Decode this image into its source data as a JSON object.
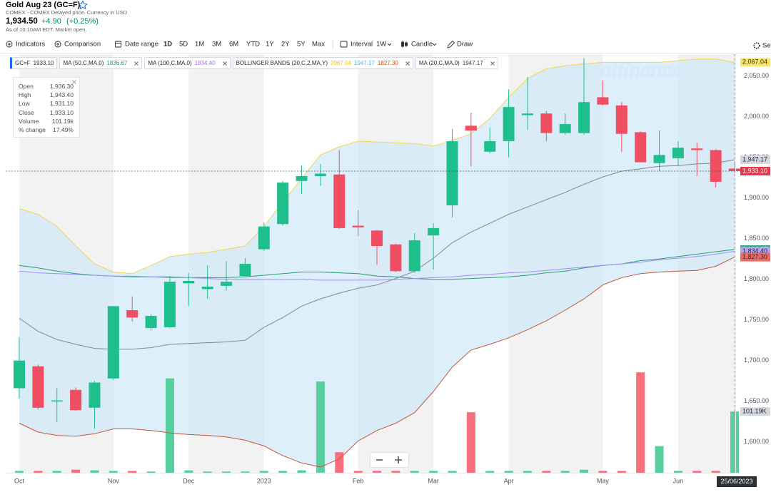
{
  "header": {
    "title": "Gold Aug 23 (GC=F)",
    "source": "COMEX - COMEX Delayed price. Currency in USD",
    "price": "1,934.50",
    "change": "+4.90",
    "change_pct": "(+0.25%)",
    "as_of": "As of 10:10AM EDT. Market open."
  },
  "toolbar": {
    "indicators": "Indicators",
    "comparison": "Comparison",
    "date_range": "Date range",
    "ranges": [
      "1D",
      "5D",
      "1M",
      "3M",
      "6M",
      "YTD",
      "1Y",
      "2Y",
      "5Y",
      "Max"
    ],
    "active_range": 0,
    "interval": "Interval",
    "interval_value": "1W",
    "chart_type": "Candle",
    "draw": "Draw",
    "settings": "Set"
  },
  "tooltip": {
    "rows": [
      [
        "Open",
        "1,936.30"
      ],
      [
        "High",
        "1,943.40"
      ],
      [
        "Low",
        "1,931.10"
      ],
      [
        "Close",
        "1,933.10"
      ],
      [
        "Volume",
        "101.19k"
      ],
      [
        "% change",
        "17.49%"
      ]
    ]
  },
  "chart_data": {
    "type": "candlestick",
    "watermark": "yahoo!finance",
    "categories": [
      "Oct",
      null,
      null,
      null,
      null,
      "Nov",
      null,
      null,
      null,
      "Dec",
      null,
      null,
      null,
      "2023",
      null,
      null,
      null,
      null,
      "Feb",
      null,
      null,
      null,
      "Mar",
      null,
      null,
      null,
      "Apr",
      null,
      null,
      null,
      null,
      "May",
      null,
      null,
      null,
      "Jun",
      null,
      null,
      null
    ],
    "crosshair_x_label": "25/06/2023",
    "ylim": [
      1562,
      2077
    ],
    "yticks": [
      {
        "value": 1600,
        "label": "1,600.00"
      },
      {
        "value": 1650,
        "label": "1,650.00"
      },
      {
        "value": 1700,
        "label": "1,700.00"
      },
      {
        "value": 1750,
        "label": "1,750.00"
      },
      {
        "value": 1800,
        "label": "1,800.00"
      },
      {
        "value": 1850,
        "label": "1,850.00"
      },
      {
        "value": 1900,
        "label": "1,900.00"
      },
      {
        "value": 1950,
        "label": "1,950.00"
      },
      {
        "value": 2000,
        "label": "2,000.00"
      },
      {
        "value": 2050,
        "label": "2,050.00"
      }
    ],
    "grid": false,
    "up_color": "#1fbf8b",
    "down_color": "#ef4f60",
    "ohlc": {
      "open": [
        1666,
        1693,
        1650,
        1664,
        1642,
        1678,
        1762,
        1740,
        1741,
        1795,
        1788,
        1792,
        1804,
        1837,
        1868,
        1921,
        1927,
        1929,
        1866,
        1860,
        1843,
        1810,
        1854,
        1891,
        1989,
        1957,
        1970,
        2002,
        2004,
        1980,
        1980,
        2024,
        2014,
        1981,
        1943,
        1949,
        1961,
        1959,
        1936.3
      ],
      "high": [
        1729,
        1695,
        1666,
        1667,
        1675,
        1767,
        1779,
        1757,
        1804,
        1808,
        1817,
        1822,
        1826,
        1870,
        1921,
        1940,
        1942,
        1959,
        1885,
        1861,
        1844,
        1857,
        1869,
        1985,
        2005,
        1987,
        2034,
        2049,
        2007,
        2004,
        2072,
        2045,
        2018,
        1982,
        1983,
        1970,
        1968,
        1960,
        1943.4
      ],
      "low": [
        1653,
        1640,
        1624,
        1638,
        1616,
        1676,
        1748,
        1737,
        1740,
        1767,
        1776,
        1786,
        1803,
        1835,
        1866,
        1905,
        1915,
        1862,
        1853,
        1818,
        1809,
        1808,
        1812,
        1876,
        1939,
        1955,
        1950,
        1984,
        1970,
        1978,
        1978,
        2014,
        1957,
        1944,
        1933,
        1939,
        1927,
        1913,
        1931.1
      ],
      "close": [
        1700,
        1642,
        1651,
        1639,
        1673,
        1767,
        1753,
        1755,
        1797,
        1798,
        1791,
        1797,
        1819,
        1865,
        1919,
        1927,
        1930,
        1863,
        1864,
        1841,
        1810,
        1848,
        1863,
        1970,
        1983,
        1970,
        2012,
        2004,
        1980,
        1991,
        2018,
        2015,
        1979,
        1944,
        1953,
        1962,
        1959,
        1920,
        1933.1
      ]
    },
    "last_close_label": "1,933.10",
    "band_fill": "#cfe8fa",
    "series": [
      {
        "color": "#2a9d6f",
        "last_label": "1,836.67",
        "label_bg": "#2fb07c",
        "label_fg": "#ffffff",
        "values": [
          1817,
          1814,
          1810,
          1807,
          1805,
          1804,
          1803,
          1803,
          1803,
          1802,
          1802,
          1802,
          1803,
          1805,
          1807,
          1809,
          1809,
          1808,
          1807,
          1804,
          1803,
          1801,
          1800,
          1800,
          1801,
          1802,
          1803,
          1805,
          1808,
          1810,
          1814,
          1817,
          1819,
          1823,
          1825,
          1828,
          1831,
          1834,
          1836.67
        ]
      },
      {
        "color": "#a48cf5",
        "last_label": "1,834.40",
        "label_bg": "#b4a2f7",
        "label_fg": "#2b2f36",
        "values": [
          1810,
          1808,
          1807,
          1806,
          1805,
          1804,
          1804,
          1803,
          1802,
          1802,
          1801,
          1800,
          1800,
          1800,
          1800,
          1800,
          1799,
          1799,
          1799,
          1799,
          1800,
          1801,
          1802,
          1803,
          1805,
          1806,
          1808,
          1809,
          1811,
          1813,
          1815,
          1817,
          1819,
          1821,
          1824,
          1826,
          1828,
          1831,
          1834.4
        ]
      },
      {
        "color": "#f2d64f",
        "last_label": "2,067.04",
        "label_bg": "#fbe46e",
        "label_fg": "#2b2f36",
        "values": [
          1887,
          1880,
          1865,
          1841,
          1819,
          1809,
          1807,
          1817,
          1828,
          1831,
          1833,
          1837,
          1841,
          1865,
          1895,
          1924,
          1953,
          1963,
          1970,
          1969,
          1968,
          1967,
          1964,
          1971,
          1979,
          1998,
          2024,
          2047,
          2059,
          2063,
          2065,
          2067,
          2067,
          2067,
          2067,
          2069,
          2071,
          2071,
          2067.04
        ]
      },
      {
        "color": "#7f8893",
        "last_label": "1,947.17",
        "label_bg": "#d3d8de",
        "label_fg": "#2b2f36",
        "values": [
          1752,
          1736,
          1726,
          1720,
          1715,
          1714,
          1714,
          1716,
          1720,
          1721,
          1722,
          1723,
          1725,
          1741,
          1753,
          1767,
          1776,
          1783,
          1789,
          1793,
          1801,
          1810,
          1826,
          1845,
          1858,
          1869,
          1880,
          1889,
          1898,
          1907,
          1917,
          1926,
          1933,
          1936,
          1939,
          1940,
          1942,
          1943,
          1947.17
        ]
      },
      {
        "color": "#c4573b",
        "last_label": "1,827.30",
        "label_bg": "#f26a5f",
        "label_fg": "#2b2f36",
        "values": [
          1623,
          1612,
          1608,
          1607,
          1610,
          1616,
          1616,
          1614,
          1611,
          1609,
          1608,
          1606,
          1602,
          1595,
          1583,
          1574,
          1569,
          1579,
          1601,
          1614,
          1623,
          1636,
          1662,
          1692,
          1713,
          1720,
          1728,
          1738,
          1749,
          1762,
          1776,
          1793,
          1802,
          1807,
          1809,
          1810,
          1811,
          1816,
          1827.3
        ]
      }
    ],
    "band_series": [
      2,
      4
    ],
    "legend": [
      {
        "name": "GC=F",
        "values": [
          "1933.10"
        ],
        "colors": [
          "#232a31"
        ]
      },
      {
        "name": "MA (50,C,MA,0)",
        "values": [
          "1836.67"
        ],
        "colors": [
          "#1f9e6c"
        ]
      },
      {
        "name": "MA (100,C,MA,0)",
        "values": [
          "1834.40"
        ],
        "colors": [
          "#9d6cf0"
        ]
      },
      {
        "name": "BOLLINGER BANDS (20,C,2,MA,Y)",
        "values": [
          "2067.04",
          "1947.17",
          "1827.30"
        ],
        "colors": [
          "#eec31a",
          "#4cb6ee",
          "#d9480f"
        ]
      },
      {
        "name": "MA (20,C,MA,0)",
        "values": [
          "1947.17"
        ],
        "colors": [
          "#3b4148"
        ]
      }
    ],
    "volume": {
      "y2lim": [
        0,
        692
      ],
      "up_color": "#58cf9e",
      "down_color": "#f6707d",
      "last_label": "101.19K",
      "up": [
        true,
        false,
        true,
        false,
        true,
        true,
        false,
        true,
        true,
        true,
        true,
        true,
        true,
        true,
        true,
        true,
        true,
        false,
        false,
        false,
        false,
        true,
        true,
        true,
        false,
        true,
        true,
        true,
        false,
        true,
        true,
        false,
        false,
        false,
        true,
        true,
        false,
        false,
        true
      ],
      "values": [
        3,
        3,
        3,
        5,
        4,
        3,
        3,
        2,
        156,
        4,
        2,
        2,
        2,
        3,
        3,
        4,
        151,
        34,
        3,
        3,
        3,
        3,
        3,
        3,
        100,
        3,
        3,
        3,
        3,
        3,
        5,
        3,
        3,
        166,
        44,
        3,
        3,
        3,
        101.19
      ]
    }
  }
}
